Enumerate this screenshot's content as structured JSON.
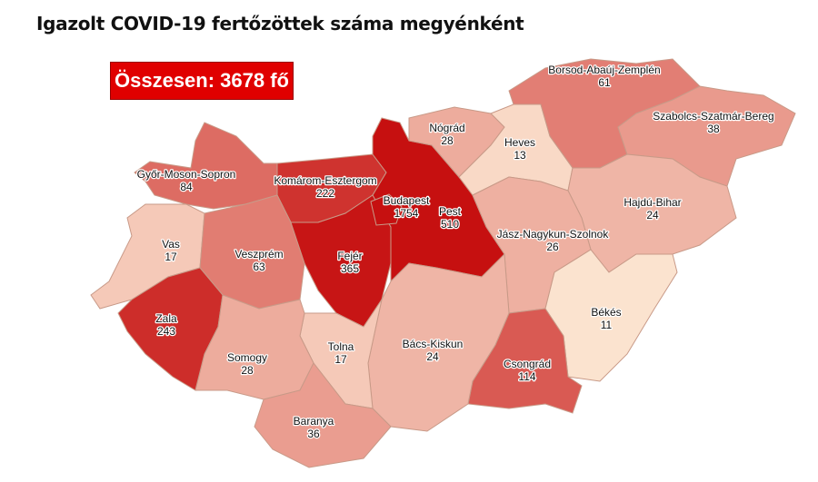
{
  "title": "Igazolt COVID-19 fertőzöttek száma megyénként",
  "total_label": "Összesen: 3678 fő",
  "total_box_color": "#e00000",
  "color_scale": {
    "low": "#fbe3cf",
    "high": "#c61010"
  },
  "counties": {
    "gyor": {
      "name": "Győr-Moson-Sopron",
      "value": 84
    },
    "komarom": {
      "name": "Komárom-Esztergom",
      "value": 222
    },
    "vas": {
      "name": "Vas",
      "value": 17
    },
    "veszprem": {
      "name": "Veszprém",
      "value": 63
    },
    "zala": {
      "name": "Zala",
      "value": 243
    },
    "fejer": {
      "name": "Fejér",
      "value": 365
    },
    "pest": {
      "name": "Pest",
      "value": 510
    },
    "budapest": {
      "name": "Budapest",
      "value": 1754
    },
    "nograd": {
      "name": "Nógrád",
      "value": 28
    },
    "heves": {
      "name": "Heves",
      "value": 13
    },
    "borsod": {
      "name": "Borsod-Abaúj-Zemplén",
      "value": 61
    },
    "szabolcs": {
      "name": "Szabolcs-Szatmár-Bereg",
      "value": 38
    },
    "hajdu": {
      "name": "Hajdú-Bihar",
      "value": 24
    },
    "jasz": {
      "name": "Jász-Nagykun-Szolnok",
      "value": 26
    },
    "bekes": {
      "name": "Békés",
      "value": 11
    },
    "csongrad": {
      "name": "Csongrád",
      "value": 114
    },
    "bacs": {
      "name": "Bács-Kiskun",
      "value": 24
    },
    "tolna": {
      "name": "Tolna",
      "value": 17
    },
    "somogy": {
      "name": "Somogy",
      "value": 28
    },
    "baranya": {
      "name": "Baranya",
      "value": 36
    }
  }
}
